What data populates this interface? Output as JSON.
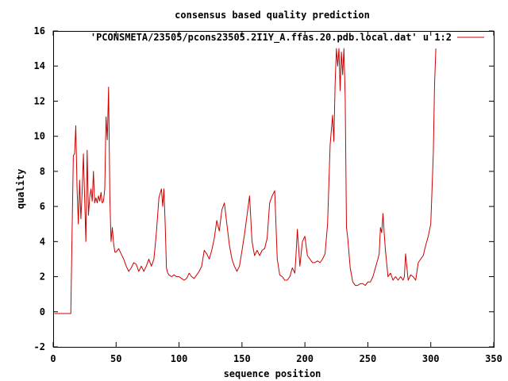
{
  "chart_data": {
    "type": "line",
    "title": "consensus based quality prediction",
    "xlabel": "sequence position",
    "ylabel": "quality",
    "xlim": [
      0,
      350
    ],
    "ylim": [
      -2,
      16
    ],
    "xticks": [
      0,
      50,
      100,
      150,
      200,
      250,
      300,
      350
    ],
    "yticks": [
      -2,
      0,
      2,
      4,
      6,
      8,
      10,
      12,
      14,
      16
    ],
    "grid": false,
    "legend_position": "top-right",
    "series": [
      {
        "name": "'PCONSMETA/23505/pcons23505.2I1Y_A.ffas.20.pdb.local.dat' u 1:2",
        "color": "#cc0000",
        "x": [
          1,
          2,
          3,
          4,
          5,
          6,
          7,
          8,
          9,
          10,
          11,
          12,
          13,
          14,
          15,
          16,
          17,
          18,
          19,
          20,
          21,
          22,
          23,
          24,
          25,
          26,
          27,
          28,
          29,
          30,
          31,
          32,
          33,
          34,
          35,
          36,
          37,
          38,
          39,
          40,
          41,
          42,
          43,
          44,
          45,
          46,
          47,
          48,
          49,
          50,
          52,
          54,
          56,
          58,
          60,
          62,
          64,
          66,
          68,
          70,
          72,
          74,
          76,
          78,
          80,
          82,
          84,
          86,
          87,
          88,
          89,
          90,
          91,
          92,
          94,
          96,
          98,
          100,
          102,
          104,
          106,
          108,
          110,
          112,
          114,
          116,
          118,
          120,
          122,
          124,
          126,
          128,
          130,
          132,
          134,
          136,
          138,
          140,
          142,
          144,
          146,
          148,
          150,
          152,
          154,
          156,
          158,
          160,
          162,
          164,
          166,
          168,
          170,
          172,
          174,
          176,
          178,
          180,
          182,
          184,
          186,
          188,
          190,
          192,
          193,
          194,
          196,
          198,
          200,
          202,
          204,
          206,
          208,
          210,
          212,
          214,
          216,
          218,
          220,
          222,
          223,
          224,
          225,
          226,
          227,
          228,
          229,
          230,
          231,
          232,
          233,
          234,
          236,
          238,
          240,
          242,
          244,
          246,
          248,
          250,
          252,
          254,
          256,
          258,
          259,
          260,
          261,
          262,
          263,
          264,
          266,
          268,
          270,
          272,
          274,
          276,
          278,
          279,
          280,
          282,
          284,
          286,
          288,
          290,
          292,
          294,
          296,
          298,
          300,
          302,
          303,
          304
        ],
        "values": [
          -0.1,
          -0.1,
          -0.1,
          -0.1,
          -0.1,
          -0.1,
          -0.1,
          -0.1,
          -0.1,
          -0.1,
          -0.1,
          -0.1,
          -0.1,
          -0.1,
          4.5,
          8.9,
          9.0,
          10.6,
          7.0,
          5.0,
          7.5,
          5.3,
          6.8,
          9.0,
          6.5,
          4.0,
          9.2,
          5.5,
          6.5,
          7.0,
          6.3,
          8.0,
          6.2,
          6.5,
          6.2,
          6.6,
          6.3,
          6.8,
          6.2,
          6.3,
          7.0,
          11.1,
          9.8,
          12.8,
          6.5,
          4.0,
          4.8,
          3.9,
          3.4,
          3.4,
          3.6,
          3.3,
          3.0,
          2.6,
          2.3,
          2.5,
          2.8,
          2.7,
          2.3,
          2.6,
          2.3,
          2.6,
          3.0,
          2.6,
          3.0,
          4.5,
          6.5,
          7.0,
          6.0,
          7.0,
          5.0,
          2.5,
          2.2,
          2.1,
          2.0,
          2.1,
          2.0,
          2.0,
          1.9,
          1.8,
          1.9,
          2.2,
          2.0,
          1.9,
          2.1,
          2.3,
          2.6,
          3.5,
          3.3,
          3.0,
          3.5,
          4.2,
          5.2,
          4.6,
          5.8,
          6.2,
          5.0,
          3.8,
          3.0,
          2.6,
          2.3,
          2.6,
          3.5,
          4.4,
          5.5,
          6.6,
          4.0,
          3.2,
          3.5,
          3.2,
          3.5,
          3.6,
          4.2,
          6.2,
          6.6,
          6.9,
          3.0,
          2.1,
          2.0,
          1.8,
          1.8,
          2.0,
          2.5,
          2.2,
          3.3,
          4.7,
          2.6,
          4.0,
          4.3,
          3.2,
          3.0,
          2.8,
          2.8,
          2.9,
          2.8,
          3.0,
          3.3,
          5.0,
          9.5,
          11.2,
          9.7,
          13.0,
          15.0,
          14.0,
          15.0,
          12.6,
          14.8,
          13.5,
          15.0,
          12.2,
          4.8,
          4.2,
          2.5,
          1.7,
          1.5,
          1.5,
          1.6,
          1.6,
          1.5,
          1.7,
          1.7,
          2.0,
          2.5,
          3.0,
          3.3,
          4.8,
          4.5,
          5.6,
          4.5,
          3.5,
          2.0,
          2.2,
          1.8,
          2.0,
          1.8,
          2.0,
          1.8,
          2.0,
          3.3,
          1.8,
          2.1,
          2.0,
          1.8,
          2.8,
          3.0,
          3.2,
          3.8,
          4.3,
          5.0,
          9.0,
          13.0,
          15.0
        ]
      }
    ]
  }
}
